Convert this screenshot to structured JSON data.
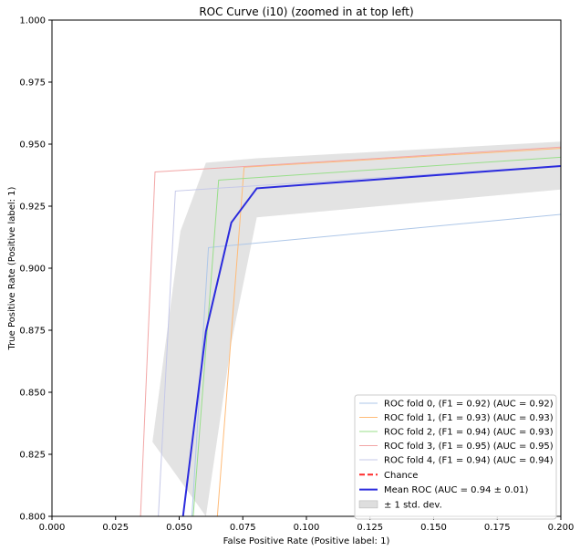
{
  "chart_data": {
    "type": "line",
    "title": "ROC Curve (i10) (zoomed in at top left)",
    "xlabel": "False Positive Rate (Positive label: 1)",
    "ylabel": "True Positive Rate (Positive label: 1)",
    "xlim": [
      0.0,
      0.2
    ],
    "ylim": [
      0.8,
      1.0
    ],
    "x_ticks": [
      "0.000",
      "0.025",
      "0.050",
      "0.075",
      "0.100",
      "0.125",
      "0.150",
      "0.175",
      "0.200"
    ],
    "y_ticks": [
      "0.800",
      "0.825",
      "0.850",
      "0.875",
      "0.900",
      "0.925",
      "0.950",
      "0.975",
      "1.000"
    ],
    "grid": false,
    "legend_position": "lower-right",
    "series": [
      {
        "name": "ROC fold 0, (F1 = 0.92) (AUC = 0.92)",
        "color": "#aec7e8",
        "width": 1,
        "opacity": 1.0,
        "x": [
          0.055,
          0.0615,
          0.0615,
          0.2
        ],
        "y": [
          0.8,
          0.9083,
          0.9083,
          0.9217
        ]
      },
      {
        "name": "ROC fold 1, (F1 = 0.93) (AUC = 0.93)",
        "color": "#ffbb78",
        "width": 1,
        "opacity": 1.0,
        "x": [
          0.065,
          0.0755,
          0.0755,
          0.2
        ],
        "y": [
          0.8,
          0.9407,
          0.9407,
          0.9483
        ]
      },
      {
        "name": "ROC fold 2, (F1 = 0.94) (AUC = 0.93)",
        "color": "#98df8a",
        "width": 1,
        "opacity": 1.0,
        "x": [
          0.0555,
          0.0655,
          0.0655,
          0.2
        ],
        "y": [
          0.8,
          0.9355,
          0.9355,
          0.9447
        ]
      },
      {
        "name": "ROC fold 3, (F1 = 0.95) (AUC = 0.95)",
        "color": "#f2a6a6",
        "width": 1,
        "opacity": 1.0,
        "x": [
          0.0348,
          0.0405,
          0.0405,
          0.2
        ],
        "y": [
          0.8,
          0.9388,
          0.9388,
          0.9488
        ]
      },
      {
        "name": "ROC fold 4, (F1 = 0.94) (AUC = 0.94)",
        "color": "#c5c8e8",
        "width": 1,
        "opacity": 1.0,
        "x": [
          0.0418,
          0.0485,
          0.0485,
          0.2
        ],
        "y": [
          0.8,
          0.9311,
          0.9311,
          0.9413
        ]
      },
      {
        "name": "Chance",
        "color": "#ff2a2a",
        "width": 2,
        "dashed": true,
        "x": [],
        "y": []
      },
      {
        "name": "Mean ROC (AUC = 0.94 ± 0.01)",
        "color": "#2b2bdd",
        "width": 2,
        "opacity": 1.0,
        "x": [
          0.0515,
          0.0605,
          0.0705,
          0.0805,
          0.2
        ],
        "y": [
          0.8,
          0.8745,
          0.9184,
          0.9322,
          0.9412
        ]
      }
    ],
    "band": {
      "name": "± 1 std. dev.",
      "color": "#c8c8c8",
      "x": [
        0.0395,
        0.0505,
        0.0605,
        0.0805,
        0.2
      ],
      "upper": [
        0.83,
        0.915,
        0.9425,
        0.9443,
        0.951
      ],
      "lower": [
        0.8,
        0.8,
        0.87,
        0.9205,
        0.9317
      ],
      "lower_x": [
        0.0605,
        0.0605,
        0.0705,
        0.0805,
        0.2
      ]
    }
  }
}
